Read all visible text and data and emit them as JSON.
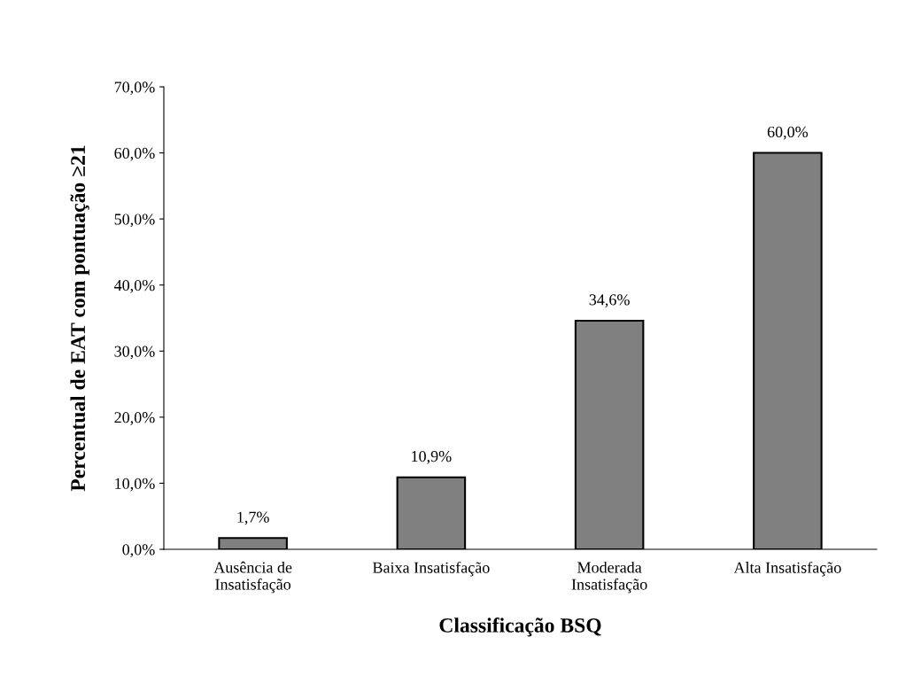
{
  "chart_data": {
    "type": "bar",
    "xlabel": "Classificação BSQ",
    "ylabel": "Percentual de EAT com pontuação ≥21",
    "categories": [
      "Ausência de\nInsatisfação",
      "Baixa Insatisfação",
      "Moderada\nInsatisfação",
      "Alta Insatisfação"
    ],
    "values": [
      1.7,
      10.9,
      34.6,
      60.0
    ],
    "value_labels": [
      "1,7%",
      "10,9%",
      "34,6%",
      "60,0%"
    ],
    "color": "#808080",
    "ylim": [
      0,
      70
    ],
    "yticks": [
      {
        "value": 0,
        "label": "0,0%"
      },
      {
        "value": 10,
        "label": "10,0%"
      },
      {
        "value": 20,
        "label": "20,0%"
      },
      {
        "value": 30,
        "label": "30,0%"
      },
      {
        "value": 40,
        "label": "40,0%"
      },
      {
        "value": 50,
        "label": "50,0%"
      },
      {
        "value": 60,
        "label": "60,0%"
      },
      {
        "value": 70,
        "label": "70,0%"
      }
    ],
    "grid": false,
    "legend": false
  }
}
